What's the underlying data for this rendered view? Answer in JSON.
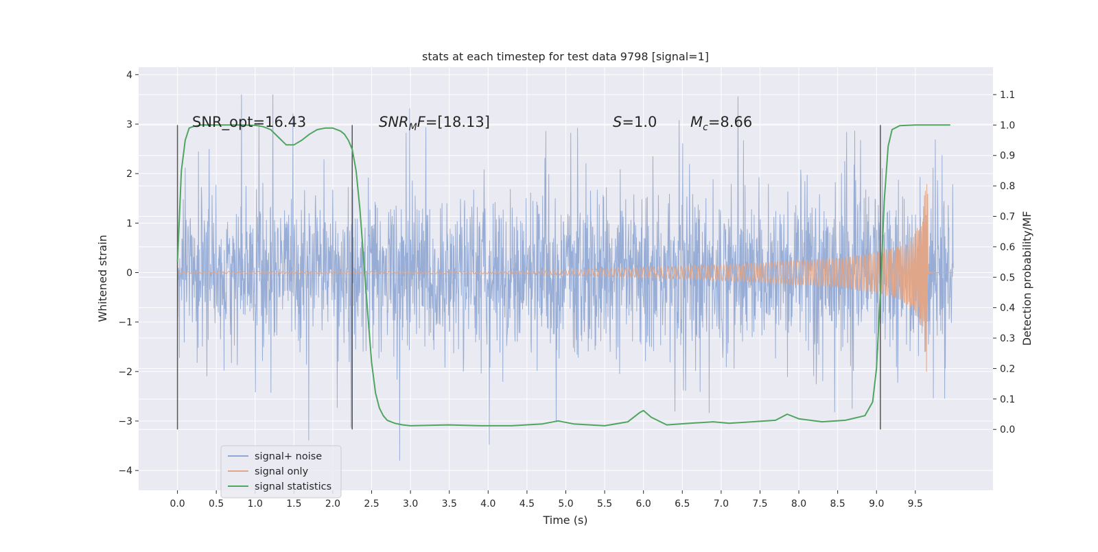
{
  "chart_data": {
    "type": "line",
    "title": "stats at each timestep for test data 9798 [signal=1]",
    "xlabel": "Time (s)",
    "ylabel": "Whitened strain",
    "ylabel_right": "Detection probability/MF",
    "xlim": [
      -0.5,
      10.5
    ],
    "ylim": [
      -4.4,
      4.15
    ],
    "ylim_right": [
      -0.2,
      1.19
    ],
    "xticks": [
      "0.0",
      "0.5",
      "1.0",
      "1.5",
      "2.0",
      "2.5",
      "3.0",
      "3.5",
      "4.0",
      "4.5",
      "5.0",
      "5.5",
      "6.0",
      "6.5",
      "7.0",
      "7.5",
      "8.0",
      "8.5",
      "9.0",
      "9.5"
    ],
    "yticks": [
      "−4",
      "−3",
      "−2",
      "−1",
      "0",
      "1",
      "2",
      "3",
      "4"
    ],
    "yticks_right": [
      "0.0",
      "0.1",
      "0.2",
      "0.3",
      "0.4",
      "0.5",
      "0.6",
      "0.7",
      "0.8",
      "0.9",
      "1.0",
      "1.1"
    ],
    "grid": true,
    "legend_position": "lower-left",
    "colors": {
      "noise": "#8fa6d2",
      "signal": "#e0a689",
      "stats": "#4ea55f",
      "background": "#eaeaf2",
      "grid": "#ffffff",
      "markers": "#555555"
    },
    "annotations": {
      "snr_opt": "SNR_opt=16.43",
      "snr_mf": "=[18.13]",
      "s_val": "=1.0",
      "mc_val": "=8.66"
    },
    "series": [
      {
        "name": "signal+ noise",
        "kind": "noise",
        "t_range": [
          0.0,
          9.99
        ],
        "band_low": -1.3,
        "band_high": 1.6,
        "spike_range": [
          -3.8,
          3.6
        ]
      },
      {
        "name": "signal only",
        "kind": "chirp",
        "t_merger": 9.66,
        "envelope": {
          "t": [
            0,
            4.5,
            5.5,
            6.5,
            7.5,
            8.5,
            9.0,
            9.3,
            9.5,
            9.6,
            9.66
          ],
          "amp": [
            0.02,
            0.03,
            0.08,
            0.13,
            0.2,
            0.3,
            0.42,
            0.55,
            0.8,
            1.3,
            2.3
          ]
        }
      },
      {
        "name": "signal statistics",
        "kind": "stats",
        "x": [
          0.0,
          0.05,
          0.1,
          0.15,
          0.2,
          0.3,
          0.5,
          0.8,
          1.0,
          1.1,
          1.2,
          1.3,
          1.4,
          1.5,
          1.6,
          1.7,
          1.8,
          1.9,
          2.0,
          2.1,
          2.15,
          2.2,
          2.25,
          2.3,
          2.35,
          2.4,
          2.45,
          2.5,
          2.55,
          2.6,
          2.65,
          2.7,
          2.8,
          2.9,
          3.0,
          3.5,
          3.9,
          4.3,
          4.7,
          4.9,
          5.1,
          5.5,
          5.8,
          5.95,
          6.0,
          6.1,
          6.3,
          6.6,
          6.9,
          7.1,
          7.4,
          7.7,
          7.85,
          8.0,
          8.3,
          8.6,
          8.85,
          8.95,
          9.0,
          9.05,
          9.1,
          9.15,
          9.2,
          9.3,
          9.5,
          9.7,
          9.95
        ],
        "y": [
          0.55,
          0.85,
          0.95,
          0.99,
          0.995,
          1.0,
          1.0,
          1.0,
          0.999,
          0.995,
          0.985,
          0.96,
          0.935,
          0.935,
          0.95,
          0.97,
          0.985,
          0.99,
          0.99,
          0.98,
          0.97,
          0.95,
          0.92,
          0.85,
          0.72,
          0.55,
          0.38,
          0.22,
          0.12,
          0.07,
          0.045,
          0.03,
          0.02,
          0.015,
          0.012,
          0.015,
          0.012,
          0.012,
          0.018,
          0.028,
          0.018,
          0.012,
          0.025,
          0.055,
          0.062,
          0.04,
          0.015,
          0.02,
          0.025,
          0.02,
          0.025,
          0.03,
          0.05,
          0.035,
          0.025,
          0.03,
          0.045,
          0.09,
          0.2,
          0.45,
          0.75,
          0.93,
          0.985,
          0.998,
          1.0,
          1.0,
          1.0
        ]
      }
    ],
    "markers_x": [
      0.0,
      2.25,
      9.05
    ]
  }
}
